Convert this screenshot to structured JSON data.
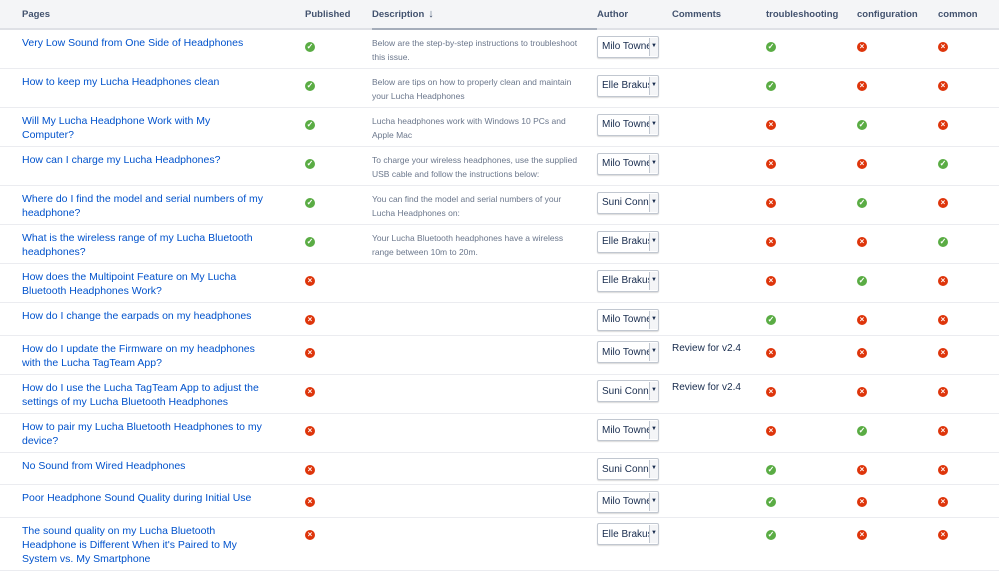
{
  "columns": {
    "pages": "Pages",
    "published": "Published",
    "description": "Description",
    "description_sort_icon": "↓",
    "author": "Author",
    "comments": "Comments",
    "troubleshooting": "troubleshooting",
    "configuration": "configuration",
    "common": "common"
  },
  "colors": {
    "check": "#5aac44",
    "cross": "#de350b",
    "link": "#0052cc"
  },
  "rows": [
    {
      "page": "Very Low Sound from One Side of Headphones",
      "published": true,
      "description": "Below are the step-by-step instructions to troubleshoot this issue.",
      "author": "Milo Towne",
      "comments": "",
      "troubleshooting": true,
      "configuration": false,
      "common": false
    },
    {
      "page": "How to keep my Lucha Headphones clean",
      "published": true,
      "description": "Below are tips on how to properly clean and maintain your Lucha Headphones",
      "author": "Elle Brakus",
      "comments": "",
      "troubleshooting": true,
      "configuration": false,
      "common": false
    },
    {
      "page": "Will My Lucha Headphone Work with My Computer?",
      "published": true,
      "description": "Lucha headphones work with Windows 10 PCs and Apple Mac",
      "author": "Milo Towne",
      "comments": "",
      "troubleshooting": false,
      "configuration": true,
      "common": false
    },
    {
      "page": "How can I charge my Lucha Headphones?",
      "published": true,
      "description": "To charge your wireless headphones, use the supplied USB cable and follow the instructions below:",
      "author": "Milo Towne",
      "comments": "",
      "troubleshooting": false,
      "configuration": false,
      "common": true
    },
    {
      "page": "Where do I find the model and serial numbers of my headphone?",
      "published": true,
      "description": "You can find the model and serial numbers of your Lucha Headphones on:",
      "author": "Suni Conn",
      "comments": "",
      "troubleshooting": false,
      "configuration": true,
      "common": false
    },
    {
      "page": "What is the wireless range of my Lucha Bluetooth headphones?",
      "published": true,
      "description": "Your Lucha Bluetooth headphones have a wireless range between 10m to 20m.",
      "author": "Elle Brakus",
      "comments": "",
      "troubleshooting": false,
      "configuration": false,
      "common": true
    },
    {
      "page": "How does the Multipoint Feature on My Lucha Bluetooth Headphones Work?",
      "published": false,
      "description": "",
      "author": "Elle Brakus",
      "comments": "",
      "troubleshooting": false,
      "configuration": true,
      "common": false
    },
    {
      "page": "How do I change the earpads on my headphones",
      "published": false,
      "description": "",
      "author": "Milo Towne",
      "comments": "",
      "troubleshooting": true,
      "configuration": false,
      "common": false
    },
    {
      "page": "How do I update the Firmware on my headphones with the Lucha TagTeam App?",
      "published": false,
      "description": "",
      "author": "Milo Towne",
      "comments": "Review for v2.4",
      "troubleshooting": false,
      "configuration": false,
      "common": false
    },
    {
      "page": "How do I use the Lucha TagTeam App to adjust the settings of my Lucha Bluetooth Headphones",
      "published": false,
      "description": "",
      "author": "Suni Conn",
      "comments": "Review for v2.4",
      "troubleshooting": false,
      "configuration": false,
      "common": false
    },
    {
      "page": "How to pair my Lucha Bluetooth Headphones to my device?",
      "published": false,
      "description": "",
      "author": "Milo Towne",
      "comments": "",
      "troubleshooting": false,
      "configuration": true,
      "common": false
    },
    {
      "page": "No Sound from Wired Headphones",
      "published": false,
      "description": "",
      "author": "Suni Conn",
      "comments": "",
      "troubleshooting": true,
      "configuration": false,
      "common": false
    },
    {
      "page": "Poor Headphone Sound Quality during Initial Use",
      "published": false,
      "description": "",
      "author": "Milo Towne",
      "comments": "",
      "troubleshooting": true,
      "configuration": false,
      "common": false
    },
    {
      "page": "The sound quality on my Lucha Bluetooth Headphone is Different When it's Paired to My System vs. My Smartphone",
      "published": false,
      "description": "",
      "author": "Elle Brakus",
      "comments": "",
      "troubleshooting": true,
      "configuration": false,
      "common": false
    }
  ]
}
